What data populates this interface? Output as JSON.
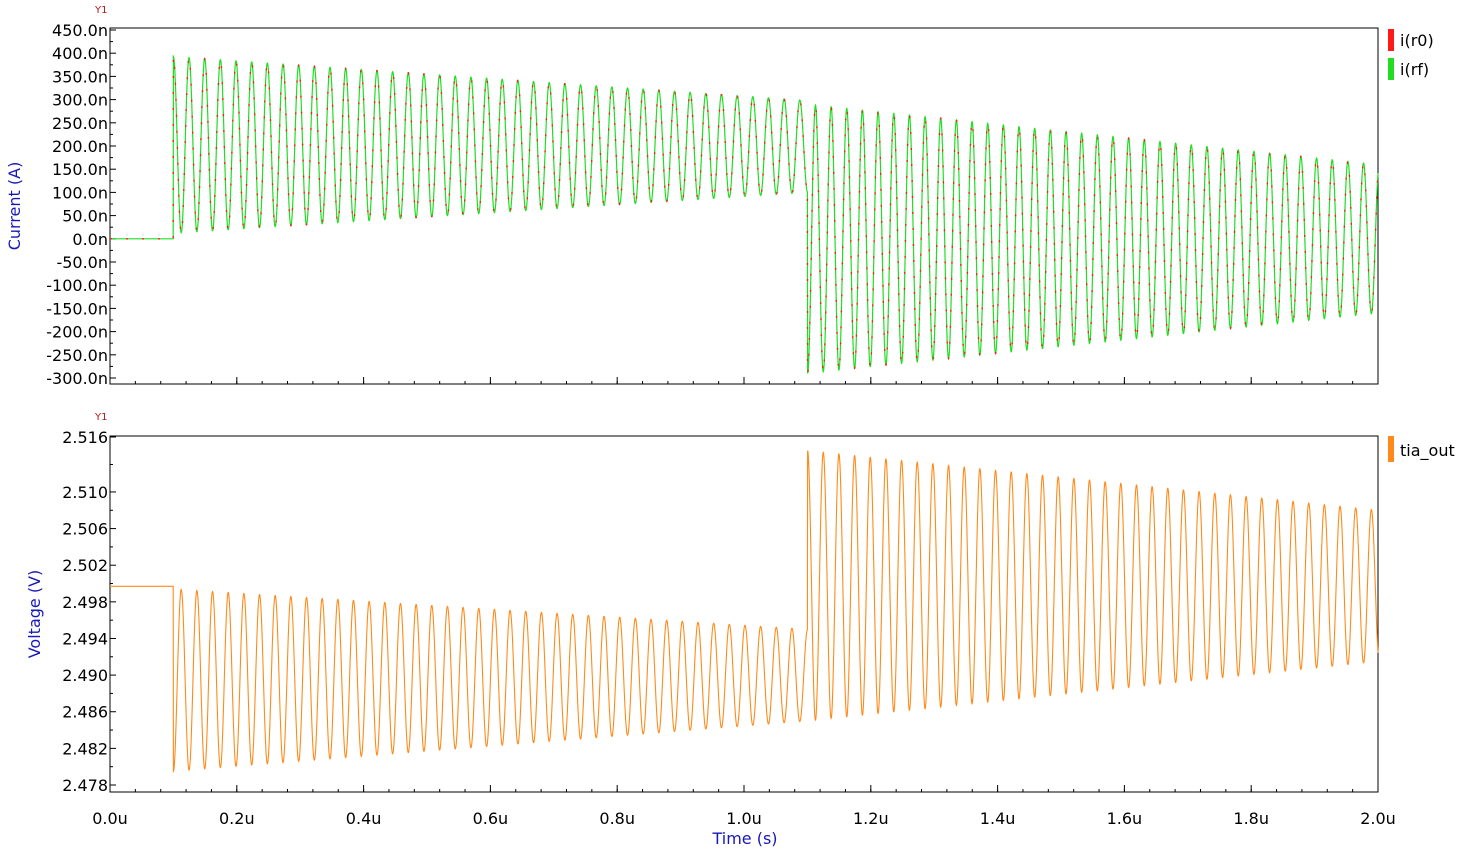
{
  "chart_data": [
    {
      "type": "line",
      "panel_tag": "Y1",
      "ylabel": "Current (A)",
      "xlabel": "",
      "ylim": [
        -300,
        450
      ],
      "y_unit_suffix": "n",
      "yticks": [
        "450.0n",
        "400.0n",
        "350.0n",
        "300.0n",
        "250.0n",
        "200.0n",
        "150.0n",
        "100.0n",
        "50.0n",
        "0.0n",
        "-50.0n",
        "-100.0n",
        "-150.0n",
        "-200.0n",
        "-250.0n",
        "-300.0n"
      ],
      "ytick_values": [
        450,
        400,
        350,
        300,
        250,
        200,
        150,
        100,
        50,
        0,
        -50,
        -100,
        -150,
        -200,
        -250,
        -300
      ],
      "xlim": [
        0,
        2.0
      ],
      "x_unit": "us",
      "legend_position": "top-right",
      "grid": false,
      "series": [
        {
          "name": "i(r0)",
          "color": "#ff1a1a"
        },
        {
          "name": "i(rf)",
          "color": "#22dd22"
        }
      ],
      "signal": {
        "baseline_before": 0,
        "start_us": 0.1,
        "step_us": 1.1,
        "end_us": 2.0,
        "period_us": 0.0247,
        "segments": [
          {
            "from_us": 0.1,
            "to_us": 1.1,
            "max_start": 393,
            "max_end": 298,
            "min_start": 12,
            "min_end": 100
          },
          {
            "from_us": 1.1,
            "to_us": 2.0,
            "max_start": 290,
            "max_end": 160,
            "min_start": -290,
            "min_end": -160
          }
        ]
      }
    },
    {
      "type": "line",
      "panel_tag": "Y1",
      "ylabel": "Voltage (V)",
      "xlabel": "Time (s)",
      "ylim": [
        2.4765,
        2.516
      ],
      "yticks": [
        "2.516",
        "2.510",
        "2.506",
        "2.502",
        "2.498",
        "2.494",
        "2.490",
        "2.486",
        "2.482",
        "2.478"
      ],
      "ytick_values": [
        2.516,
        2.51,
        2.506,
        2.502,
        2.498,
        2.494,
        2.49,
        2.486,
        2.482,
        2.478
      ],
      "xlim": [
        0,
        2.0
      ],
      "xticks": [
        "0.0u",
        "0.2u",
        "0.4u",
        "0.6u",
        "0.8u",
        "1.0u",
        "1.2u",
        "1.4u",
        "1.6u",
        "1.8u",
        "2.0u"
      ],
      "xtick_values": [
        0,
        0.2,
        0.4,
        0.6,
        0.8,
        1.0,
        1.2,
        1.4,
        1.6,
        1.8,
        2.0
      ],
      "legend_position": "top-right",
      "grid": false,
      "series": [
        {
          "name": "tia_out",
          "color": "#ff8a1a"
        }
      ],
      "signal": {
        "baseline_before": 2.4997,
        "start_us": 0.1,
        "step_us": 1.1,
        "end_us": 2.0,
        "period_us": 0.0247,
        "segments": [
          {
            "from_us": 0.1,
            "to_us": 1.1,
            "max_start": 2.4994,
            "max_end": 2.495,
            "min_start": 2.4795,
            "min_end": 2.485
          },
          {
            "from_us": 1.1,
            "to_us": 2.0,
            "max_start": 2.5145,
            "max_end": 2.508,
            "min_start": 2.485,
            "min_end": 2.4915
          }
        ]
      }
    }
  ]
}
